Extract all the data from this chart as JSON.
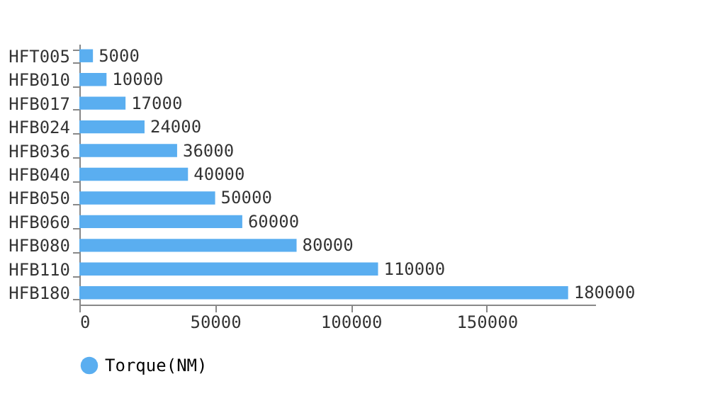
{
  "chart_data": {
    "type": "bar",
    "orientation": "horizontal",
    "categories": [
      "HFT005",
      "HFB010",
      "HFB017",
      "HFB024",
      "HFB036",
      "HFB040",
      "HFB050",
      "HFB060",
      "HFB080",
      "HFB110",
      "HFB180"
    ],
    "series": [
      {
        "name": "Torque(NM)",
        "color": "#5aaef0",
        "values": [
          5000,
          10000,
          17000,
          24000,
          36000,
          40000,
          50000,
          60000,
          80000,
          110000,
          180000
        ]
      }
    ],
    "xlim": [
      0,
      190000
    ],
    "xticks": [
      0,
      50000,
      100000,
      150000
    ],
    "data_labels": true,
    "legend": "bottom",
    "grid": false
  }
}
